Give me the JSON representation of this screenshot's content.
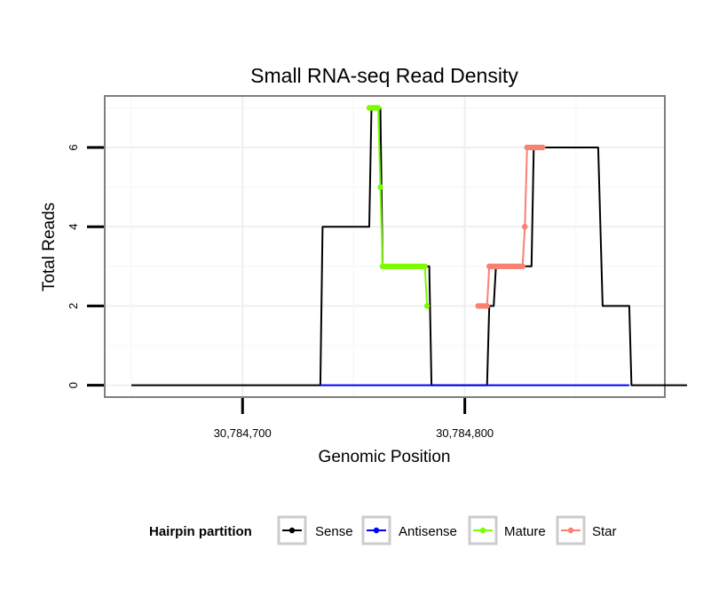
{
  "chart_data": {
    "type": "line",
    "title": "Small RNA-seq Read Density",
    "xlabel": "Genomic Position",
    "ylabel": "Total Reads",
    "xlim": [
      30784638,
      30784890
    ],
    "ylim": [
      -0.3,
      7.3
    ],
    "x_ticks": [
      {
        "value": 30784700,
        "label": "30,784,700"
      },
      {
        "value": 30784800,
        "label": "30,784,800"
      }
    ],
    "y_ticks": [
      {
        "value": 0,
        "label": "0"
      },
      {
        "value": 2,
        "label": "2"
      },
      {
        "value": 4,
        "label": "4"
      },
      {
        "value": 6,
        "label": "6"
      }
    ],
    "legend": {
      "title": "Hairpin partition",
      "position": "bottom",
      "entries": [
        {
          "label": "Sense",
          "color": "#000000"
        },
        {
          "label": "Antisense",
          "color": "#0000ff"
        },
        {
          "label": "Mature",
          "color": "#7cfc00"
        },
        {
          "label": "Star",
          "color": "#fa8072"
        }
      ]
    },
    "series": [
      {
        "name": "Sense",
        "color": "#000000",
        "x": [
          30784650,
          30784735,
          30784736,
          30784757,
          30784758,
          30784762,
          30784763,
          30784784,
          30784785,
          30784810,
          30784811,
          30784813,
          30784814,
          30784830,
          30784831,
          30784845,
          30784846,
          30784860,
          30784862,
          30784874,
          30784875,
          30784900
        ],
        "y": [
          0,
          0,
          4,
          4,
          7,
          7,
          3,
          3,
          0,
          0,
          2,
          2,
          3,
          3,
          6,
          6,
          6,
          6,
          2,
          2,
          0,
          0
        ]
      },
      {
        "name": "Antisense",
        "color": "#0000ff",
        "x": [
          30784735,
          30784874
        ],
        "y": [
          0,
          0
        ]
      },
      {
        "name": "Mature",
        "color": "#7cfc00",
        "x": [
          30784757,
          30784758,
          30784759,
          30784760,
          30784761,
          30784762,
          30784763,
          30784764,
          30784765,
          30784766,
          30784767,
          30784768,
          30784769,
          30784770,
          30784771,
          30784772,
          30784773,
          30784774,
          30784775,
          30784776,
          30784777,
          30784778,
          30784779,
          30784780,
          30784781,
          30784782,
          30784783
        ],
        "y": [
          7,
          7,
          7,
          7,
          7,
          5,
          3,
          3,
          3,
          3,
          3,
          3,
          3,
          3,
          3,
          3,
          3,
          3,
          3,
          3,
          3,
          3,
          3,
          3,
          3,
          3,
          2
        ]
      },
      {
        "name": "Star",
        "color": "#fa8072",
        "x": [
          30784806,
          30784807,
          30784808,
          30784809,
          30784810,
          30784811,
          30784812,
          30784813,
          30784814,
          30784815,
          30784816,
          30784817,
          30784818,
          30784819,
          30784820,
          30784821,
          30784822,
          30784823,
          30784824,
          30784825,
          30784826,
          30784827,
          30784828,
          30784829,
          30784830,
          30784831,
          30784832,
          30784833,
          30784834,
          30784835
        ],
        "y": [
          2,
          2,
          2,
          2,
          2,
          3,
          3,
          3,
          3,
          3,
          3,
          3,
          3,
          3,
          3,
          3,
          3,
          3,
          3,
          3,
          3,
          4,
          6,
          6,
          6,
          6,
          6,
          6,
          6,
          6
        ]
      }
    ]
  }
}
